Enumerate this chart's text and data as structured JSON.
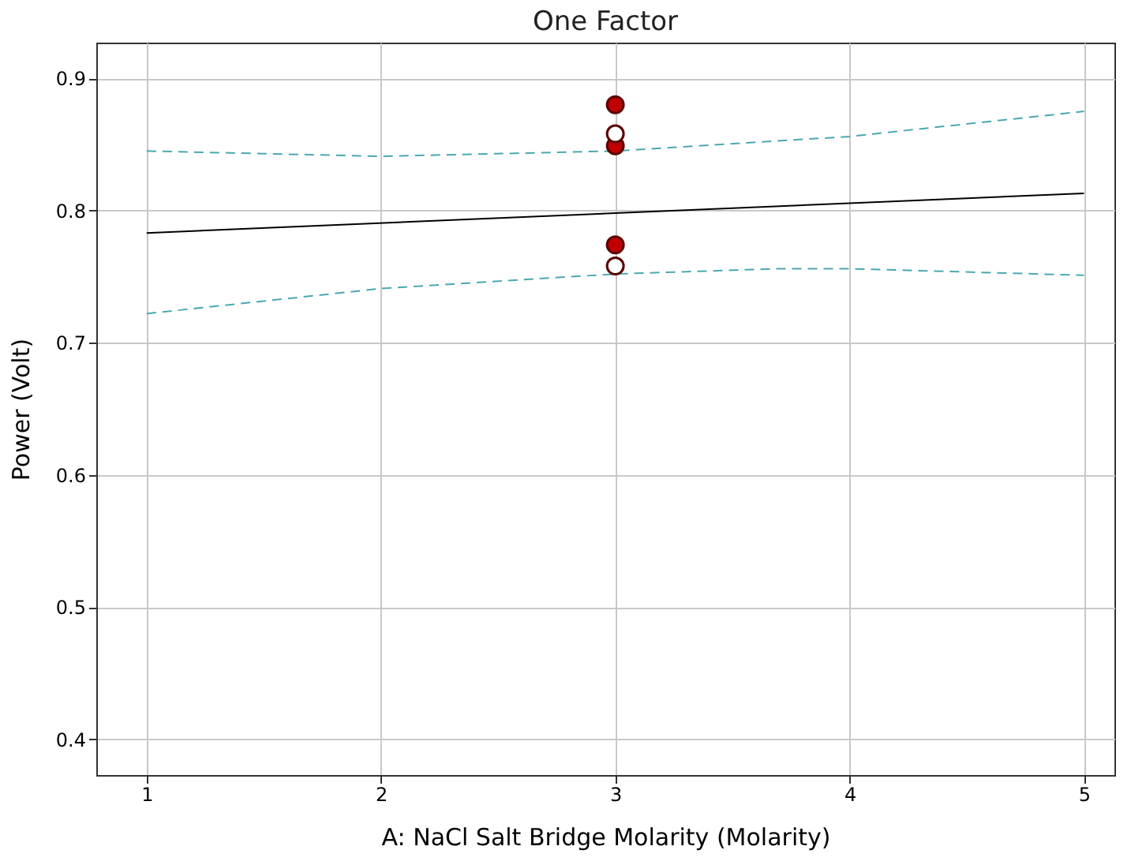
{
  "chart_data": {
    "type": "scatter",
    "title": "One Factor",
    "xlabel": "A: NaCl Salt Bridge Molarity (Molarity)",
    "ylabel": "Power (Volt)",
    "xlim": [
      0.785,
      5.13
    ],
    "ylim": [
      0.373,
      0.927
    ],
    "xticks": [
      1,
      2,
      3,
      4,
      5
    ],
    "yticks": [
      0.4,
      0.5,
      0.6,
      0.7,
      0.8,
      0.9
    ],
    "grid": true,
    "series": [
      {
        "type": "line",
        "color": "#000000",
        "line_style": "solid",
        "x": [
          1,
          5
        ],
        "values": [
          0.783,
          0.813
        ]
      },
      {
        "type": "line",
        "color": "#4aa8b0",
        "line_style": "dashed",
        "x": [
          1,
          2,
          3,
          4,
          5
        ],
        "values": [
          0.845,
          0.841,
          0.845,
          0.856,
          0.875
        ]
      },
      {
        "type": "line",
        "color": "#4aa8b0",
        "line_style": "dashed",
        "x": [
          1,
          2,
          3,
          3.7,
          4,
          5
        ],
        "values": [
          0.722,
          0.741,
          0.752,
          0.756,
          0.756,
          0.751
        ]
      },
      {
        "color": "#c00000",
        "marker": "circle",
        "x": [
          3,
          3,
          3
        ],
        "values": [
          0.88,
          0.849,
          0.774
        ]
      },
      {
        "color": "#ffffff",
        "marker": "circle",
        "x": [
          3,
          3
        ],
        "values": [
          0.858,
          0.758
        ]
      }
    ]
  }
}
